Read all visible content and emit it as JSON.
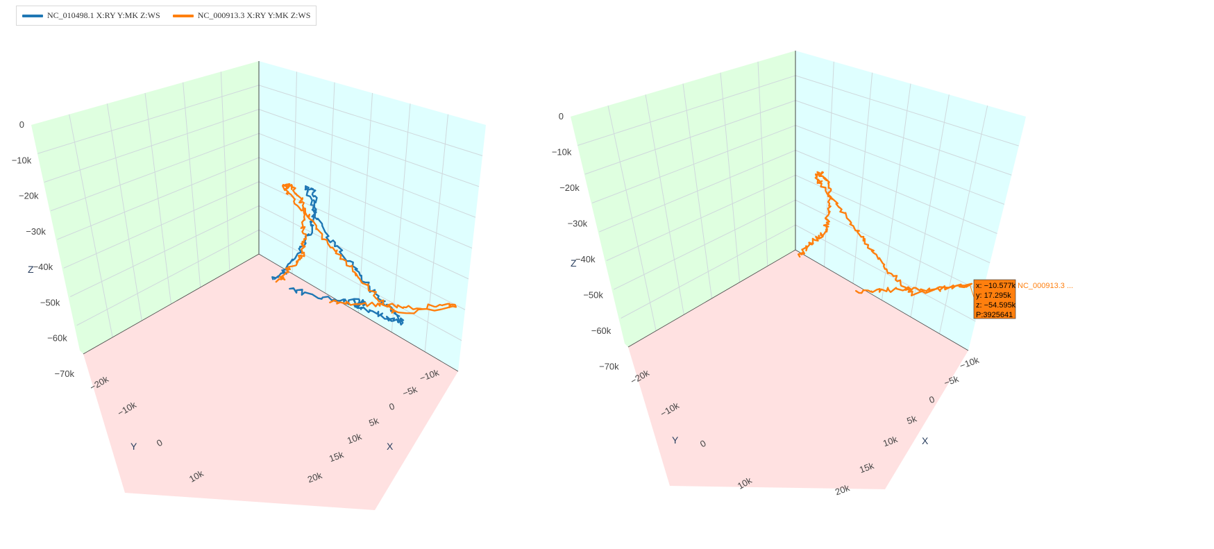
{
  "legend": [
    {
      "label": "NC_010498.1 X:RY Y:MK Z:WS",
      "color": "#1f77b4"
    },
    {
      "label": "NC_000913.3 X:RY Y:MK Z:WS",
      "color": "#ff7f0e"
    }
  ],
  "colors": {
    "wall_yz": "#dfffe0",
    "wall_xz": "#dfffff",
    "floor": "#ffe1e1",
    "grid": "#cfd8dc",
    "frame": "#444444"
  },
  "chart_data": [
    {
      "type": "line3d",
      "xlabel": "X",
      "ylabel": "Y",
      "zlabel": "Z",
      "x_ticks": [
        "−10k",
        "−5k",
        "0",
        "5k",
        "10k",
        "15k",
        "20k"
      ],
      "y_ticks": [
        "−20k",
        "−10k",
        "0",
        "10k"
      ],
      "z_ticks": [
        "0",
        "−10k",
        "−20k",
        "−30k",
        "−40k",
        "−50k",
        "−60k",
        "−70k"
      ],
      "xlim": [
        -12000,
        22000
      ],
      "ylim": [
        -27000,
        13000
      ],
      "zlim": [
        -72000,
        2000
      ],
      "series": [
        {
          "name": "NC_010498.1 X:RY Y:MK Z:WS",
          "points": [
            [
              -9000,
              -25000,
              -8000
            ],
            [
              -8500,
              -22000,
              -9500
            ],
            [
              -7000,
              -19000,
              -11500
            ],
            [
              -5500,
              -14000,
              -12500
            ],
            [
              -3500,
              -10000,
              -14000
            ],
            [
              -1000,
              -5000,
              -16500
            ],
            [
              1000,
              -2000,
              -18500
            ],
            [
              3500,
              2000,
              -19500
            ],
            [
              6500,
              5500,
              -22000
            ],
            [
              9500,
              8000,
              -26000
            ],
            [
              11000,
              10000,
              -31000
            ],
            [
              9000,
              9000,
              -37000
            ],
            [
              5000,
              7000,
              -39000
            ],
            [
              1500,
              6000,
              -40000
            ],
            [
              -2000,
              5000,
              -42000
            ],
            [
              -5000,
              4000,
              -44000
            ],
            [
              -7500,
              3500,
              -44500
            ],
            [
              -9000,
              3500,
              -45500
            ],
            [
              -11000,
              2500,
              -45000
            ],
            [
              -12000,
              2000,
              -45500
            ],
            [
              -10500,
              3000,
              -48000
            ],
            [
              -8000,
              4000,
              -51000
            ],
            [
              -5000,
              5500,
              -54000
            ],
            [
              -2000,
              6500,
              -57000
            ],
            [
              0,
              7500,
              -59500
            ],
            [
              -1500,
              5000,
              -55000
            ],
            [
              -4000,
              3000,
              -49000
            ],
            [
              -6000,
              1000,
              -45000
            ],
            [
              -8500,
              -3000,
              -37000
            ],
            [
              -10000,
              -8000,
              -31000
            ],
            [
              -11500,
              -14000,
              -23000
            ],
            [
              -12000,
              -20000,
              -15000
            ],
            [
              -12000,
              -25000,
              -8000
            ]
          ]
        },
        {
          "name": "NC_000913.3 X:RY Y:MK Z:WS",
          "points": [
            [
              -10000,
              -25000,
              -8000
            ],
            [
              -9000,
              -22000,
              -9000
            ],
            [
              -7500,
              -19000,
              -11000
            ],
            [
              -6000,
              -15000,
              -14000
            ],
            [
              -4000,
              -11000,
              -17000
            ],
            [
              -1000,
              -7000,
              -20000
            ],
            [
              2000,
              -3000,
              -21000
            ],
            [
              5000,
              1000,
              -22000
            ],
            [
              8000,
              4000,
              -24000
            ],
            [
              11000,
              6500,
              -27000
            ],
            [
              13000,
              8000,
              -30000
            ],
            [
              14500,
              9000,
              -33000
            ],
            [
              14000,
              9500,
              -36000
            ],
            [
              11000,
              9000,
              -38000
            ],
            [
              8000,
              8000,
              -39500
            ],
            [
              5000,
              7000,
              -41000
            ],
            [
              2000,
              6500,
              -43000
            ],
            [
              -1000,
              6000,
              -45000
            ],
            [
              -4000,
              5500,
              -47000
            ],
            [
              -6500,
              5500,
              -49000
            ],
            [
              -8000,
              6000,
              -51000
            ],
            [
              -10577,
              17295,
              -54595
            ],
            [
              -8000,
              16000,
              -57000
            ],
            [
              -5000,
              14500,
              -60000
            ],
            [
              -2000,
              13500,
              -62000
            ],
            [
              1000,
              12500,
              -64500
            ],
            [
              4000,
              11500,
              -67000
            ],
            [
              7000,
              10000,
              -69000
            ]
          ]
        }
      ]
    },
    {
      "type": "line3d",
      "xlabel": "X",
      "ylabel": "Y",
      "zlabel": "Z",
      "x_ticks": [
        "−10k",
        "−5k",
        "0",
        "5k",
        "10k",
        "15k",
        "20k"
      ],
      "y_ticks": [
        "−20k",
        "−10k",
        "0",
        "10k"
      ],
      "z_ticks": [
        "0",
        "−10k",
        "−20k",
        "−30k",
        "−40k",
        "−50k",
        "−60k",
        "−70k"
      ],
      "series": [
        {
          "name": "NC_000913.3 X:RY Y:MK Z:WS",
          "points": [
            [
              -10000,
              -25000,
              -8000
            ],
            [
              -9000,
              -22000,
              -9000
            ],
            [
              -7500,
              -19000,
              -11000
            ],
            [
              -6000,
              -15000,
              -14000
            ],
            [
              -4000,
              -11000,
              -17000
            ],
            [
              -1000,
              -7000,
              -20000
            ],
            [
              2000,
              -3000,
              -21000
            ],
            [
              5000,
              1000,
              -22000
            ],
            [
              8000,
              4000,
              -24000
            ],
            [
              11000,
              6500,
              -27000
            ],
            [
              13000,
              8000,
              -30000
            ],
            [
              14500,
              9000,
              -33000
            ],
            [
              14000,
              9500,
              -36000
            ],
            [
              11000,
              9000,
              -38000
            ],
            [
              8000,
              8000,
              -39500
            ],
            [
              5000,
              7000,
              -41000
            ],
            [
              2000,
              6500,
              -43000
            ],
            [
              -1000,
              6000,
              -45000
            ],
            [
              -4000,
              5500,
              -47000
            ],
            [
              -6500,
              5500,
              -49000
            ],
            [
              -8000,
              6000,
              -51000
            ],
            [
              -10577,
              17295,
              -54595
            ],
            [
              -8000,
              16000,
              -57000
            ],
            [
              -5000,
              14500,
              -60000
            ],
            [
              -2000,
              13500,
              -62000
            ],
            [
              1000,
              12500,
              -64500
            ],
            [
              4000,
              11500,
              -67000
            ],
            [
              7000,
              10000,
              -69000
            ]
          ]
        }
      ],
      "tooltip": {
        "lines": [
          "x: −10.577k",
          "y: 17.295k",
          "z: −54.595k",
          "P:3925641"
        ],
        "name": "NC_000913.3 ...",
        "color": "#ff7f0e",
        "point": [
          -10577,
          17295,
          -54595
        ]
      }
    }
  ]
}
